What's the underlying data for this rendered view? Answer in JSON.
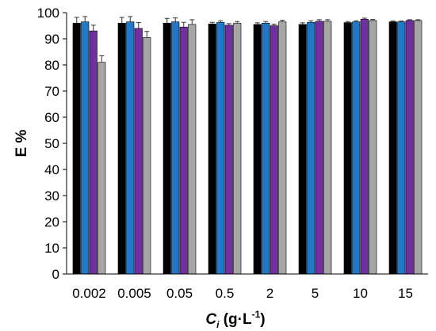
{
  "chart_data": {
    "type": "bar",
    "categories": [
      "0.002",
      "0.005",
      "0.05",
      "0.5",
      "2",
      "5",
      "10",
      "15"
    ],
    "series": [
      {
        "color": "#000000",
        "values": [
          96.0,
          96.0,
          96.0,
          95.7,
          95.5,
          95.5,
          96.2,
          96.5
        ],
        "errors": [
          2.2,
          2.2,
          1.8,
          0.6,
          0.6,
          0.6,
          0.4,
          0.3
        ]
      },
      {
        "color": "#1f78c8",
        "values": [
          96.5,
          96.5,
          96.5,
          96.3,
          96.0,
          96.3,
          96.5,
          96.5
        ],
        "errors": [
          2.0,
          2.0,
          1.5,
          0.6,
          0.6,
          0.6,
          0.4,
          0.3
        ]
      },
      {
        "color": "#7030a0",
        "values": [
          93.0,
          94.0,
          94.5,
          95.2,
          95.0,
          96.7,
          97.5,
          97.0
        ],
        "errors": [
          2.2,
          2.2,
          1.8,
          0.6,
          0.6,
          0.6,
          0.4,
          0.3
        ]
      },
      {
        "color": "#a6a6a6",
        "values": [
          81.0,
          90.5,
          95.5,
          96.0,
          96.5,
          96.7,
          97.0,
          97.0
        ],
        "errors": [
          2.5,
          2.3,
          1.8,
          0.6,
          0.6,
          0.6,
          0.4,
          0.3
        ]
      }
    ],
    "ylim": [
      0,
      100
    ],
    "ytick_step": 10,
    "ylabel": "E %",
    "xlabel_main": "C",
    "xlabel_sub": "i",
    "xlabel_unit_a": " (g·L",
    "xlabel_unit_sup": "-1",
    "xlabel_unit_b": ")",
    "grid": false,
    "legend": "none"
  }
}
